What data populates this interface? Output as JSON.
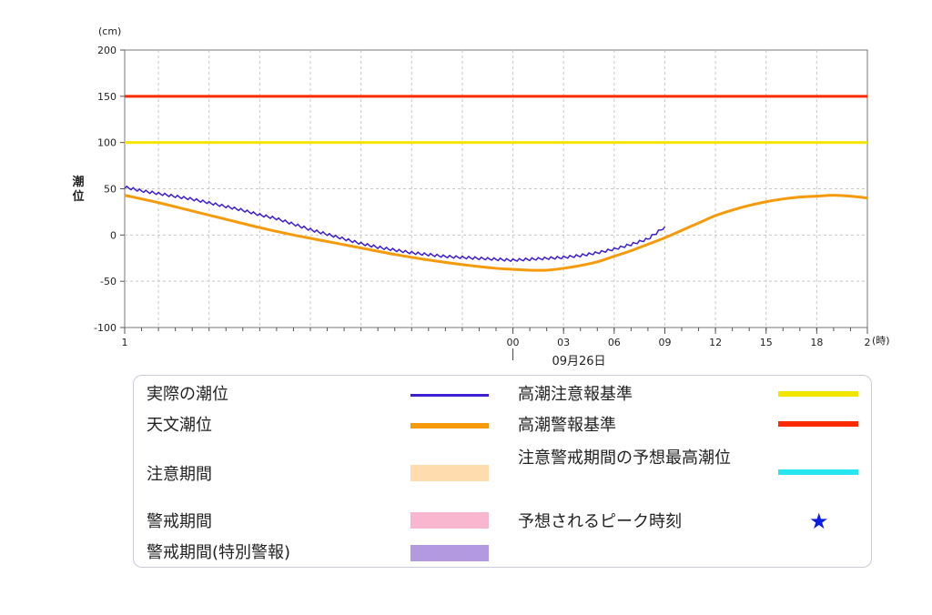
{
  "chart_data": {
    "type": "line",
    "y_unit": "(cm)",
    "x_unit": "(時)",
    "ylabel": "潮位",
    "date_label": "09月26日",
    "ylim": [
      -100,
      200
    ],
    "y_ticks": [
      200,
      150,
      100,
      50,
      0,
      -50,
      -100
    ],
    "x_range_hours": [
      -23,
      21
    ],
    "x_ticks": [
      {
        "hour": -23,
        "label": "1"
      },
      {
        "hour": 0,
        "label": "00"
      },
      {
        "hour": 3,
        "label": "03"
      },
      {
        "hour": 6,
        "label": "06"
      },
      {
        "hour": 9,
        "label": "09"
      },
      {
        "hour": 12,
        "label": "12"
      },
      {
        "hour": 15,
        "label": "15"
      },
      {
        "hour": 18,
        "label": "18"
      },
      {
        "hour": 21,
        "label": "2"
      }
    ],
    "thresholds": [
      {
        "name": "高潮警報基準",
        "value": 150,
        "color": "#ff2a00"
      },
      {
        "name": "高潮注意報基準",
        "value": 100,
        "color": "#f2e600"
      }
    ],
    "series": [
      {
        "name": "天文潮位",
        "color": "#f59b0b",
        "x": [
          -23,
          -21,
          -19,
          -17,
          -15,
          -13,
          -11,
          -9,
          -7,
          -5,
          -3,
          -1,
          0,
          1,
          2,
          3,
          4,
          5,
          6,
          7,
          8,
          9,
          10,
          11,
          12,
          13,
          14,
          15,
          16,
          17,
          18,
          19,
          20,
          21
        ],
        "y": [
          43,
          35,
          26,
          17,
          8,
          0,
          -7,
          -14,
          -21,
          -27,
          -32,
          -36,
          -37,
          -38,
          -38,
          -36,
          -33,
          -29,
          -23,
          -17,
          -10,
          -3,
          5,
          13,
          21,
          27,
          32,
          36,
          39,
          41,
          42,
          43,
          42,
          40
        ]
      },
      {
        "name": "実際の潮位",
        "color": "#3b1fd1",
        "x": [
          -23,
          -22,
          -21,
          -20,
          -19,
          -18,
          -17,
          -16,
          -15,
          -14,
          -13,
          -12,
          -11,
          -10,
          -9,
          -8,
          -7,
          -6,
          -5,
          -4,
          -3,
          -2,
          -1,
          0,
          1,
          2,
          3,
          4,
          5,
          6,
          7,
          8,
          9
        ],
        "y": [
          52,
          48,
          45,
          42,
          39,
          35,
          31,
          27,
          22,
          18,
          12,
          6,
          1,
          -4,
          -9,
          -13,
          -16,
          -19,
          -21,
          -23,
          -24,
          -25,
          -26,
          -27,
          -26,
          -25,
          -24,
          -22,
          -19,
          -15,
          -10,
          -4,
          9
        ]
      }
    ]
  },
  "legend": {
    "items": [
      {
        "label": "実際の潮位",
        "color": "#3b1fd1"
      },
      {
        "label": "天文潮位",
        "color": "#f59b0b"
      },
      {
        "label": "注意期間",
        "color": "#ffdcae"
      },
      {
        "label": "警戒期間",
        "color": "#f8b6cf"
      },
      {
        "label": "警戒期間(特別警報)",
        "color": "#b39ae0"
      },
      {
        "label": "高潮注意報基準",
        "color": "#f2e600"
      },
      {
        "label": "高潮警報基準",
        "color": "#ff2a00"
      },
      {
        "label": "注意警戒期間の予想最高潮位",
        "color": "#27e6ef"
      },
      {
        "label": "予想されるピーク時刻",
        "color": "#0a1ee6"
      }
    ]
  }
}
